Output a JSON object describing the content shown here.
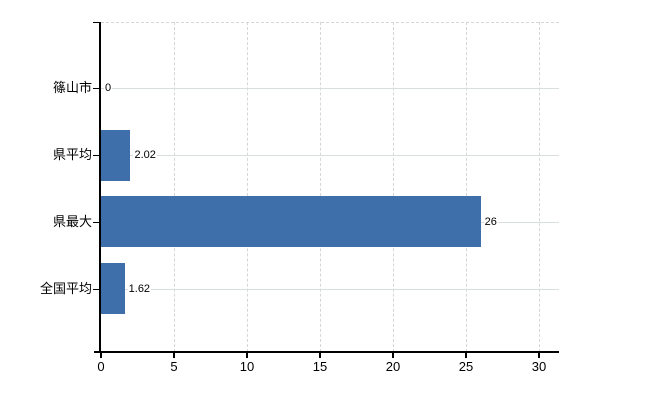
{
  "chart_data": {
    "type": "bar",
    "orientation": "horizontal",
    "title": "",
    "categories": [
      "篠山市",
      "県平均",
      "県最大",
      "全国平均"
    ],
    "values": [
      0,
      2.02,
      26,
      1.62
    ],
    "value_labels": [
      "0",
      "2.02",
      "26",
      "1.62"
    ],
    "x_ticks": [
      0,
      5,
      10,
      15,
      20,
      25,
      30
    ],
    "x_tick_labels": [
      "0",
      "5",
      "10",
      "15",
      "20",
      "25",
      "30"
    ],
    "xlim": [
      0,
      31.4
    ],
    "ylabel": "",
    "xlabel": "",
    "legend": "none",
    "grid": {
      "vertical": "dashed",
      "horizontal": "solid-at-category-centers",
      "top_border": "dashed"
    },
    "colors": {
      "bar": "#3f6fab",
      "axis": "#000000",
      "grid_vertical": "#d6d6d6",
      "grid_horizontal": "#d9e0d9",
      "background": "#ffffff",
      "text": "#000000",
      "value_label_bg": "#ffffff"
    }
  }
}
